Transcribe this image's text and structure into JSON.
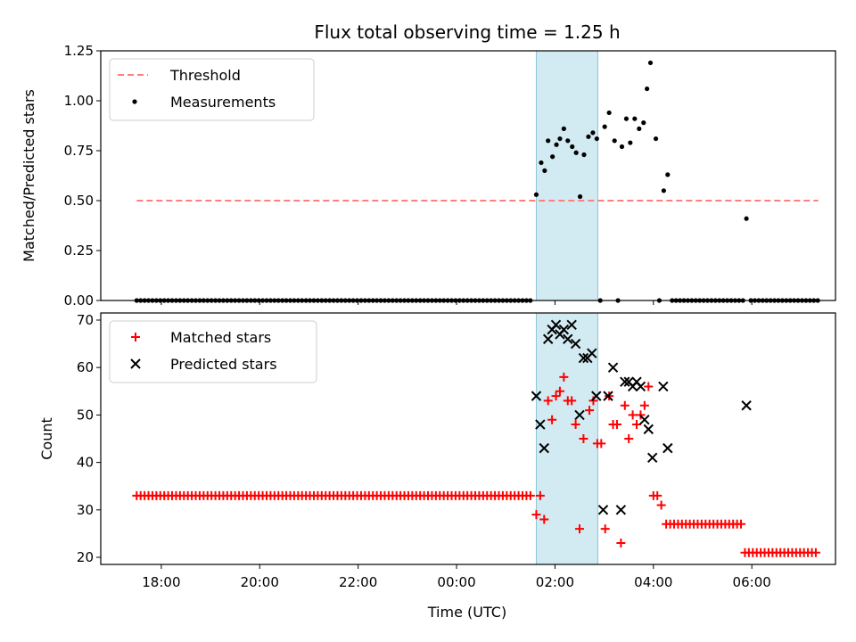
{
  "chart_data": {
    "title": "Flux total observing time = 1.25 h",
    "xlabel": "Time (UTC)",
    "x_unit": "hours UTC (values of 24 or more denote the following day)",
    "xlim": [
      16.77,
      31.7
    ],
    "x_ticks": [
      {
        "value": 18,
        "label": "18:00"
      },
      {
        "value": 20,
        "label": "20:00"
      },
      {
        "value": 22,
        "label": "22:00"
      },
      {
        "value": 24,
        "label": "00:00"
      },
      {
        "value": 26,
        "label": "02:00"
      },
      {
        "value": 28,
        "label": "04:00"
      },
      {
        "value": 30,
        "label": "06:00"
      }
    ],
    "shaded_span": {
      "x_start": 25.62,
      "x_end": 26.87,
      "color": "#add8e6"
    },
    "panels": [
      {
        "type": "scatter",
        "ylabel": "Matched/Predicted stars",
        "ylim": [
          0,
          1.25
        ],
        "y_ticks": [
          {
            "value": 0,
            "label": "0.00"
          },
          {
            "value": 0.25,
            "label": "0.25"
          },
          {
            "value": 0.5,
            "label": "0.50"
          },
          {
            "value": 0.75,
            "label": "0.75"
          },
          {
            "value": 1.0,
            "label": "1.00"
          },
          {
            "value": 1.25,
            "label": "1.25"
          }
        ],
        "legend_position": "upper-left",
        "threshold": {
          "name": "Threshold",
          "value": 0.5,
          "x_start": 17.5,
          "x_end": 31.35,
          "color": "#ff7f7f"
        },
        "measurements": {
          "name": "Measurements",
          "color": "#000000",
          "zero_points": {
            "x_start": 17.5,
            "x_end": 25.57,
            "step": 0.08,
            "value": 0
          },
          "points": [
            [
              25.62,
              0.53
            ],
            [
              25.72,
              0.69
            ],
            [
              25.79,
              0.65
            ],
            [
              25.86,
              0.8
            ],
            [
              25.95,
              0.72
            ],
            [
              26.03,
              0.78
            ],
            [
              26.1,
              0.81
            ],
            [
              26.18,
              0.86
            ],
            [
              26.26,
              0.8
            ],
            [
              26.35,
              0.77
            ],
            [
              26.43,
              0.74
            ],
            [
              26.51,
              0.52
            ],
            [
              26.59,
              0.73
            ],
            [
              26.68,
              0.82
            ],
            [
              26.77,
              0.84
            ],
            [
              26.85,
              0.81
            ],
            [
              26.92,
              0.0
            ],
            [
              27.01,
              0.87
            ],
            [
              27.1,
              0.94
            ],
            [
              27.21,
              0.8
            ],
            [
              27.28,
              0.0
            ],
            [
              27.36,
              0.77
            ],
            [
              27.45,
              0.91
            ],
            [
              27.53,
              0.79
            ],
            [
              27.62,
              0.91
            ],
            [
              27.71,
              0.86
            ],
            [
              27.8,
              0.89
            ],
            [
              27.87,
              1.06
            ],
            [
              27.94,
              1.19
            ],
            [
              28.05,
              0.81
            ],
            [
              28.12,
              0.0
            ],
            [
              28.21,
              0.55
            ],
            [
              28.29,
              0.63
            ],
            [
              28.38,
              0.0
            ],
            [
              28.46,
              0.0
            ],
            [
              28.54,
              0.0
            ],
            [
              28.62,
              0.0
            ],
            [
              28.7,
              0.0
            ],
            [
              28.78,
              0.0
            ],
            [
              28.86,
              0.0
            ],
            [
              28.94,
              0.0
            ],
            [
              29.02,
              0.0
            ],
            [
              29.1,
              0.0
            ],
            [
              29.18,
              0.0
            ],
            [
              29.26,
              0.0
            ],
            [
              29.34,
              0.0
            ],
            [
              29.42,
              0.0
            ],
            [
              29.5,
              0.0
            ],
            [
              29.58,
              0.0
            ],
            [
              29.66,
              0.0
            ],
            [
              29.74,
              0.0
            ],
            [
              29.82,
              0.0
            ],
            [
              29.89,
              0.41
            ],
            [
              29.98,
              0.0
            ],
            [
              30.06,
              0.0
            ],
            [
              30.14,
              0.0
            ],
            [
              30.22,
              0.0
            ],
            [
              30.3,
              0.0
            ],
            [
              30.38,
              0.0
            ],
            [
              30.46,
              0.0
            ],
            [
              30.54,
              0.0
            ],
            [
              30.62,
              0.0
            ],
            [
              30.7,
              0.0
            ],
            [
              30.78,
              0.0
            ],
            [
              30.86,
              0.0
            ],
            [
              30.94,
              0.0
            ],
            [
              31.02,
              0.0
            ],
            [
              31.1,
              0.0
            ],
            [
              31.18,
              0.0
            ],
            [
              31.26,
              0.0
            ],
            [
              31.34,
              0.0
            ]
          ]
        }
      },
      {
        "type": "scatter",
        "ylabel": "Count",
        "ylim": [
          18.5,
          71.5
        ],
        "y_ticks": [
          {
            "value": 20,
            "label": "20"
          },
          {
            "value": 30,
            "label": "30"
          },
          {
            "value": 40,
            "label": "40"
          },
          {
            "value": 50,
            "label": "50"
          },
          {
            "value": 60,
            "label": "60"
          },
          {
            "value": 70,
            "label": "70"
          }
        ],
        "legend_position": "upper-left",
        "series": [
          {
            "name": "Matched stars",
            "marker": "plus",
            "color": "#ff0000",
            "constant_run": {
              "x_start": 17.5,
              "x_end": 25.55,
              "step": 0.08,
              "value": 33
            },
            "points": [
              [
                25.62,
                29
              ],
              [
                25.7,
                33
              ],
              [
                25.78,
                28
              ],
              [
                25.86,
                53
              ],
              [
                25.94,
                49
              ],
              [
                26.02,
                54
              ],
              [
                26.1,
                55
              ],
              [
                26.18,
                58
              ],
              [
                26.26,
                53
              ],
              [
                26.34,
                53
              ],
              [
                26.42,
                48
              ],
              [
                26.5,
                26
              ],
              [
                26.58,
                45
              ],
              [
                26.7,
                51
              ],
              [
                26.78,
                53
              ],
              [
                26.86,
                44
              ],
              [
                26.94,
                44
              ],
              [
                27.02,
                26
              ],
              [
                27.1,
                54
              ],
              [
                27.18,
                48
              ],
              [
                27.26,
                48
              ],
              [
                27.34,
                23
              ],
              [
                27.42,
                52
              ],
              [
                27.5,
                45
              ],
              [
                27.58,
                50
              ],
              [
                27.66,
                48
              ],
              [
                27.74,
                50
              ],
              [
                27.82,
                52
              ],
              [
                27.9,
                56
              ],
              [
                28.0,
                33
              ],
              [
                28.08,
                33
              ],
              [
                28.16,
                31
              ],
              [
                28.26,
                27
              ],
              [
                28.34,
                27
              ],
              [
                28.42,
                27
              ],
              [
                28.5,
                27
              ],
              [
                28.58,
                27
              ],
              [
                28.66,
                27
              ],
              [
                28.74,
                27
              ],
              [
                28.82,
                27
              ],
              [
                28.9,
                27
              ],
              [
                28.98,
                27
              ],
              [
                29.06,
                27
              ],
              [
                29.14,
                27
              ],
              [
                29.22,
                27
              ],
              [
                29.3,
                27
              ],
              [
                29.38,
                27
              ],
              [
                29.46,
                27
              ],
              [
                29.54,
                27
              ],
              [
                29.62,
                27
              ],
              [
                29.7,
                27
              ],
              [
                29.78,
                27
              ],
              [
                29.86,
                21
              ],
              [
                29.94,
                21
              ],
              [
                30.02,
                21
              ],
              [
                30.1,
                21
              ],
              [
                30.18,
                21
              ],
              [
                30.26,
                21
              ],
              [
                30.34,
                21
              ],
              [
                30.42,
                21
              ],
              [
                30.5,
                21
              ],
              [
                30.58,
                21
              ],
              [
                30.66,
                21
              ],
              [
                30.74,
                21
              ],
              [
                30.82,
                21
              ],
              [
                30.9,
                21
              ],
              [
                30.98,
                21
              ],
              [
                31.06,
                21
              ],
              [
                31.14,
                21
              ],
              [
                31.22,
                21
              ],
              [
                31.3,
                21
              ]
            ]
          },
          {
            "name": "Predicted stars",
            "marker": "x",
            "color": "#000000",
            "points": [
              [
                25.62,
                54
              ],
              [
                25.7,
                48
              ],
              [
                25.78,
                43
              ],
              [
                25.86,
                66
              ],
              [
                25.94,
                68
              ],
              [
                26.02,
                69
              ],
              [
                26.1,
                67
              ],
              [
                26.18,
                68
              ],
              [
                26.26,
                66
              ],
              [
                26.34,
                69
              ],
              [
                26.42,
                65
              ],
              [
                26.5,
                50
              ],
              [
                26.58,
                62
              ],
              [
                26.66,
                62
              ],
              [
                26.75,
                63
              ],
              [
                26.84,
                54
              ],
              [
                26.98,
                30
              ],
              [
                27.08,
                54
              ],
              [
                27.18,
                60
              ],
              [
                27.34,
                30
              ],
              [
                27.42,
                57
              ],
              [
                27.5,
                57
              ],
              [
                27.58,
                56
              ],
              [
                27.66,
                57
              ],
              [
                27.74,
                56
              ],
              [
                27.82,
                49
              ],
              [
                27.9,
                47
              ],
              [
                27.98,
                41
              ],
              [
                28.2,
                56
              ],
              [
                28.29,
                43
              ],
              [
                29.89,
                52
              ]
            ]
          }
        ]
      }
    ]
  }
}
